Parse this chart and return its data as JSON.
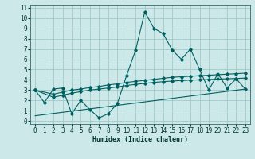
{
  "xlabel": "Humidex (Indice chaleur)",
  "bg_color": "#cce8e8",
  "grid_color": "#a0c8c8",
  "line_color": "#006060",
  "spine_color": "#336666",
  "tick_color": "#003333",
  "xlim": [
    -0.5,
    23.5
  ],
  "ylim": [
    -0.3,
    11.3
  ],
  "xticks": [
    0,
    1,
    2,
    3,
    4,
    5,
    6,
    7,
    8,
    9,
    10,
    11,
    12,
    13,
    14,
    15,
    16,
    17,
    18,
    19,
    20,
    21,
    22,
    23
  ],
  "yticks": [
    0,
    1,
    2,
    3,
    4,
    5,
    6,
    7,
    8,
    9,
    10,
    11
  ],
  "line1_x": [
    0,
    1,
    2,
    3,
    4,
    5,
    6,
    7,
    8,
    9,
    10,
    11,
    12,
    13,
    14,
    15,
    16,
    17,
    18,
    19,
    20,
    21,
    22,
    23
  ],
  "line1_y": [
    3.0,
    1.8,
    3.1,
    3.2,
    0.7,
    2.0,
    1.1,
    0.3,
    0.7,
    1.7,
    4.4,
    6.9,
    10.6,
    9.0,
    8.5,
    6.9,
    6.0,
    7.0,
    5.0,
    3.0,
    4.6,
    3.2,
    4.1,
    3.1
  ],
  "line2_x": [
    0,
    2,
    3,
    4,
    5,
    6,
    7,
    8,
    9,
    10,
    11,
    12,
    13,
    14,
    15,
    16,
    17,
    18,
    19,
    20,
    21,
    22,
    23
  ],
  "line2_y": [
    3.0,
    2.6,
    2.8,
    3.0,
    3.1,
    3.25,
    3.35,
    3.5,
    3.6,
    3.75,
    3.85,
    3.95,
    4.05,
    4.15,
    4.25,
    4.3,
    4.35,
    4.4,
    4.45,
    4.5,
    4.55,
    4.6,
    4.65
  ],
  "line3_x": [
    0,
    2,
    3,
    4,
    5,
    6,
    7,
    8,
    9,
    10,
    11,
    12,
    13,
    14,
    15,
    16,
    17,
    18,
    19,
    20,
    21,
    22,
    23
  ],
  "line3_y": [
    3.0,
    2.3,
    2.5,
    2.7,
    2.85,
    3.0,
    3.1,
    3.2,
    3.3,
    3.45,
    3.55,
    3.65,
    3.75,
    3.82,
    3.88,
    3.93,
    3.97,
    4.0,
    4.03,
    4.07,
    4.1,
    4.13,
    4.17
  ],
  "line4_x": [
    0,
    23
  ],
  "line4_y": [
    0.5,
    3.1
  ]
}
